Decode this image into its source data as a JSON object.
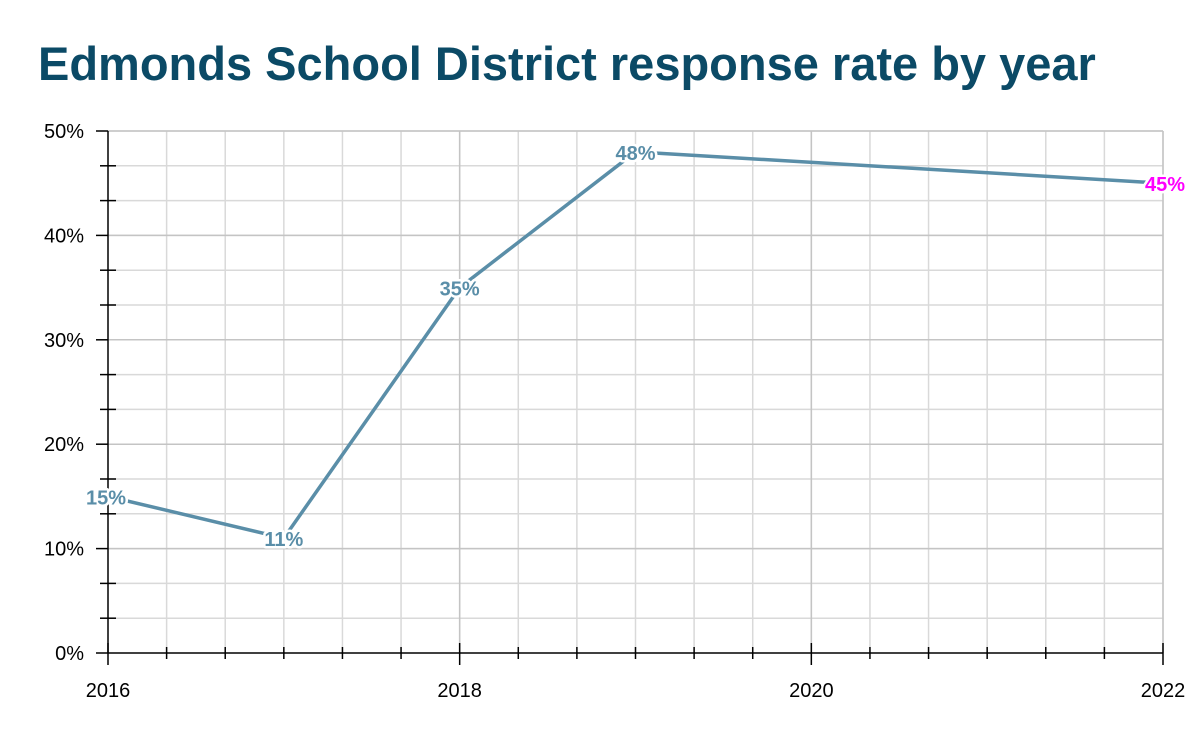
{
  "chart_data": {
    "type": "line",
    "title": "Edmonds School District response rate by year",
    "xlabel": "",
    "ylabel": "",
    "x": [
      2016,
      2017,
      2018,
      2019,
      2022
    ],
    "series": [
      {
        "name": "Response rate",
        "values": [
          15,
          11,
          35,
          48,
          45
        ],
        "labels": [
          "15%",
          "11%",
          "35%",
          "48%",
          "45%"
        ]
      }
    ],
    "xlim": [
      2016,
      2022
    ],
    "ylim": [
      0,
      50
    ],
    "x_ticks": [
      2016,
      2018,
      2020,
      2022
    ],
    "x_tick_labels": [
      "2016",
      "2018",
      "2020",
      "2022"
    ],
    "y_ticks": [
      0,
      10,
      20,
      30,
      40,
      50
    ],
    "y_tick_labels": [
      "0%",
      "10%",
      "20%",
      "30%",
      "40%",
      "50%"
    ],
    "grid": true,
    "legend": "none",
    "colors": {
      "title": "#0b4a66",
      "line": "#5a8ea8",
      "label": "#5a8ea8",
      "highlight_label": "#ff00ff",
      "grid": "#d9d9d9",
      "axis": "#000000"
    }
  }
}
